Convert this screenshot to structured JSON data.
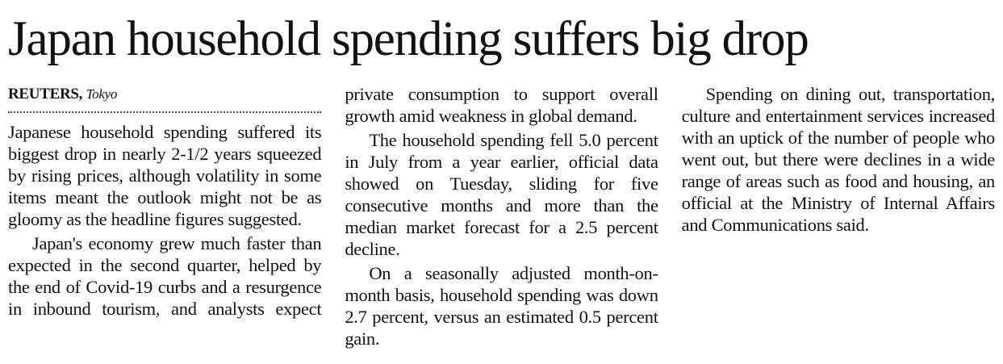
{
  "header": {
    "title": "Japan household spending suffers big drop"
  },
  "byline": {
    "agency": "REUTERS,",
    "location": "Tokyo"
  },
  "paragraphs": [
    "Japanese household spending suffered its biggest drop in nearly 2-1/2 years squeezed by rising prices, although volatility in some items meant the outlook might not be as gloomy as the headline figures suggested.",
    "Japan's economy grew much faster than expected in the second quarter, helped by the end of Covid-19 curbs and a resurgence in inbound tourism, and analysts expect private consumption to support overall growth amid weakness in global demand.",
    "The household spending fell 5.0 percent in July from a year earlier, official data showed on Tuesday, sliding for five consecutive months and more than the median market forecast for a 2.5 percent decline.",
    "On a seasonally adjusted month-on-month basis, household spending was down 2.7 percent, versus an estimated 0.5 percent gain.",
    "Spending on dining out, transportation, culture and entertainment services increased with an uptick of the number of people who went out, but there were declines in a wide range of areas such as food and housing, an official at the Ministry of Internal Affairs and Communications said."
  ]
}
